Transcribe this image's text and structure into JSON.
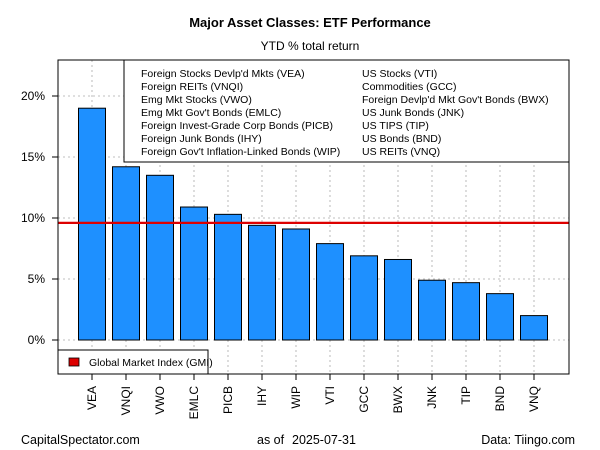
{
  "header": {
    "title": "Major Asset Classes: ETF Performance",
    "subtitle": "YTD % total return"
  },
  "legend_top": {
    "left_col": [
      "Foreign Stocks Devlp'd Mkts (VEA)",
      "Foreign REITs (VNQI)",
      "Emg Mkt Stocks (VWO)",
      "Emg Mkt Gov't Bonds (EMLC)",
      "Foreign Invest-Grade Corp Bonds (PICB)",
      "Foreign Junk Bonds (IHY)",
      "Foreign Gov't Inflation-Linked Bonds (WIP)"
    ],
    "right_col": [
      "US Stocks (VTI)",
      "Commodities (GCC)",
      "Foreign Devlp'd Mkt Gov't Bonds (BWX)",
      "US Junk Bonds (JNK)",
      "US TIPS (TIP)",
      "US Bonds (BND)",
      "US REITs (VNQ)"
    ]
  },
  "legend_bottom": {
    "label": "Global Market Index (GMI)",
    "color": "#dd0000"
  },
  "footer": {
    "left": "CapitalSpectator.com",
    "center_prefix": "as of",
    "center_date": "2025-07-31",
    "right": "Data: Tiingo.com"
  },
  "colors": {
    "bar": "#1e90ff",
    "gmi_line": "#dd0000",
    "grid": "#aaaaaa"
  },
  "chart_data": {
    "type": "bar",
    "categories": [
      "VEA",
      "VNQI",
      "VWO",
      "EMLC",
      "PICB",
      "IHY",
      "WIP",
      "VTI",
      "GCC",
      "BWX",
      "JNK",
      "TIP",
      "BND",
      "VNQ"
    ],
    "values": [
      19.0,
      14.2,
      13.5,
      10.9,
      10.3,
      9.4,
      9.1,
      7.9,
      6.9,
      6.6,
      4.9,
      4.7,
      3.8,
      2.0
    ],
    "gmi_value": 9.6,
    "ylim": [
      -3,
      23
    ],
    "yticks": [
      0,
      5,
      10,
      15,
      20
    ],
    "ytick_labels": [
      "0%",
      "5%",
      "10%",
      "15%",
      "20%"
    ],
    "grid": true
  }
}
